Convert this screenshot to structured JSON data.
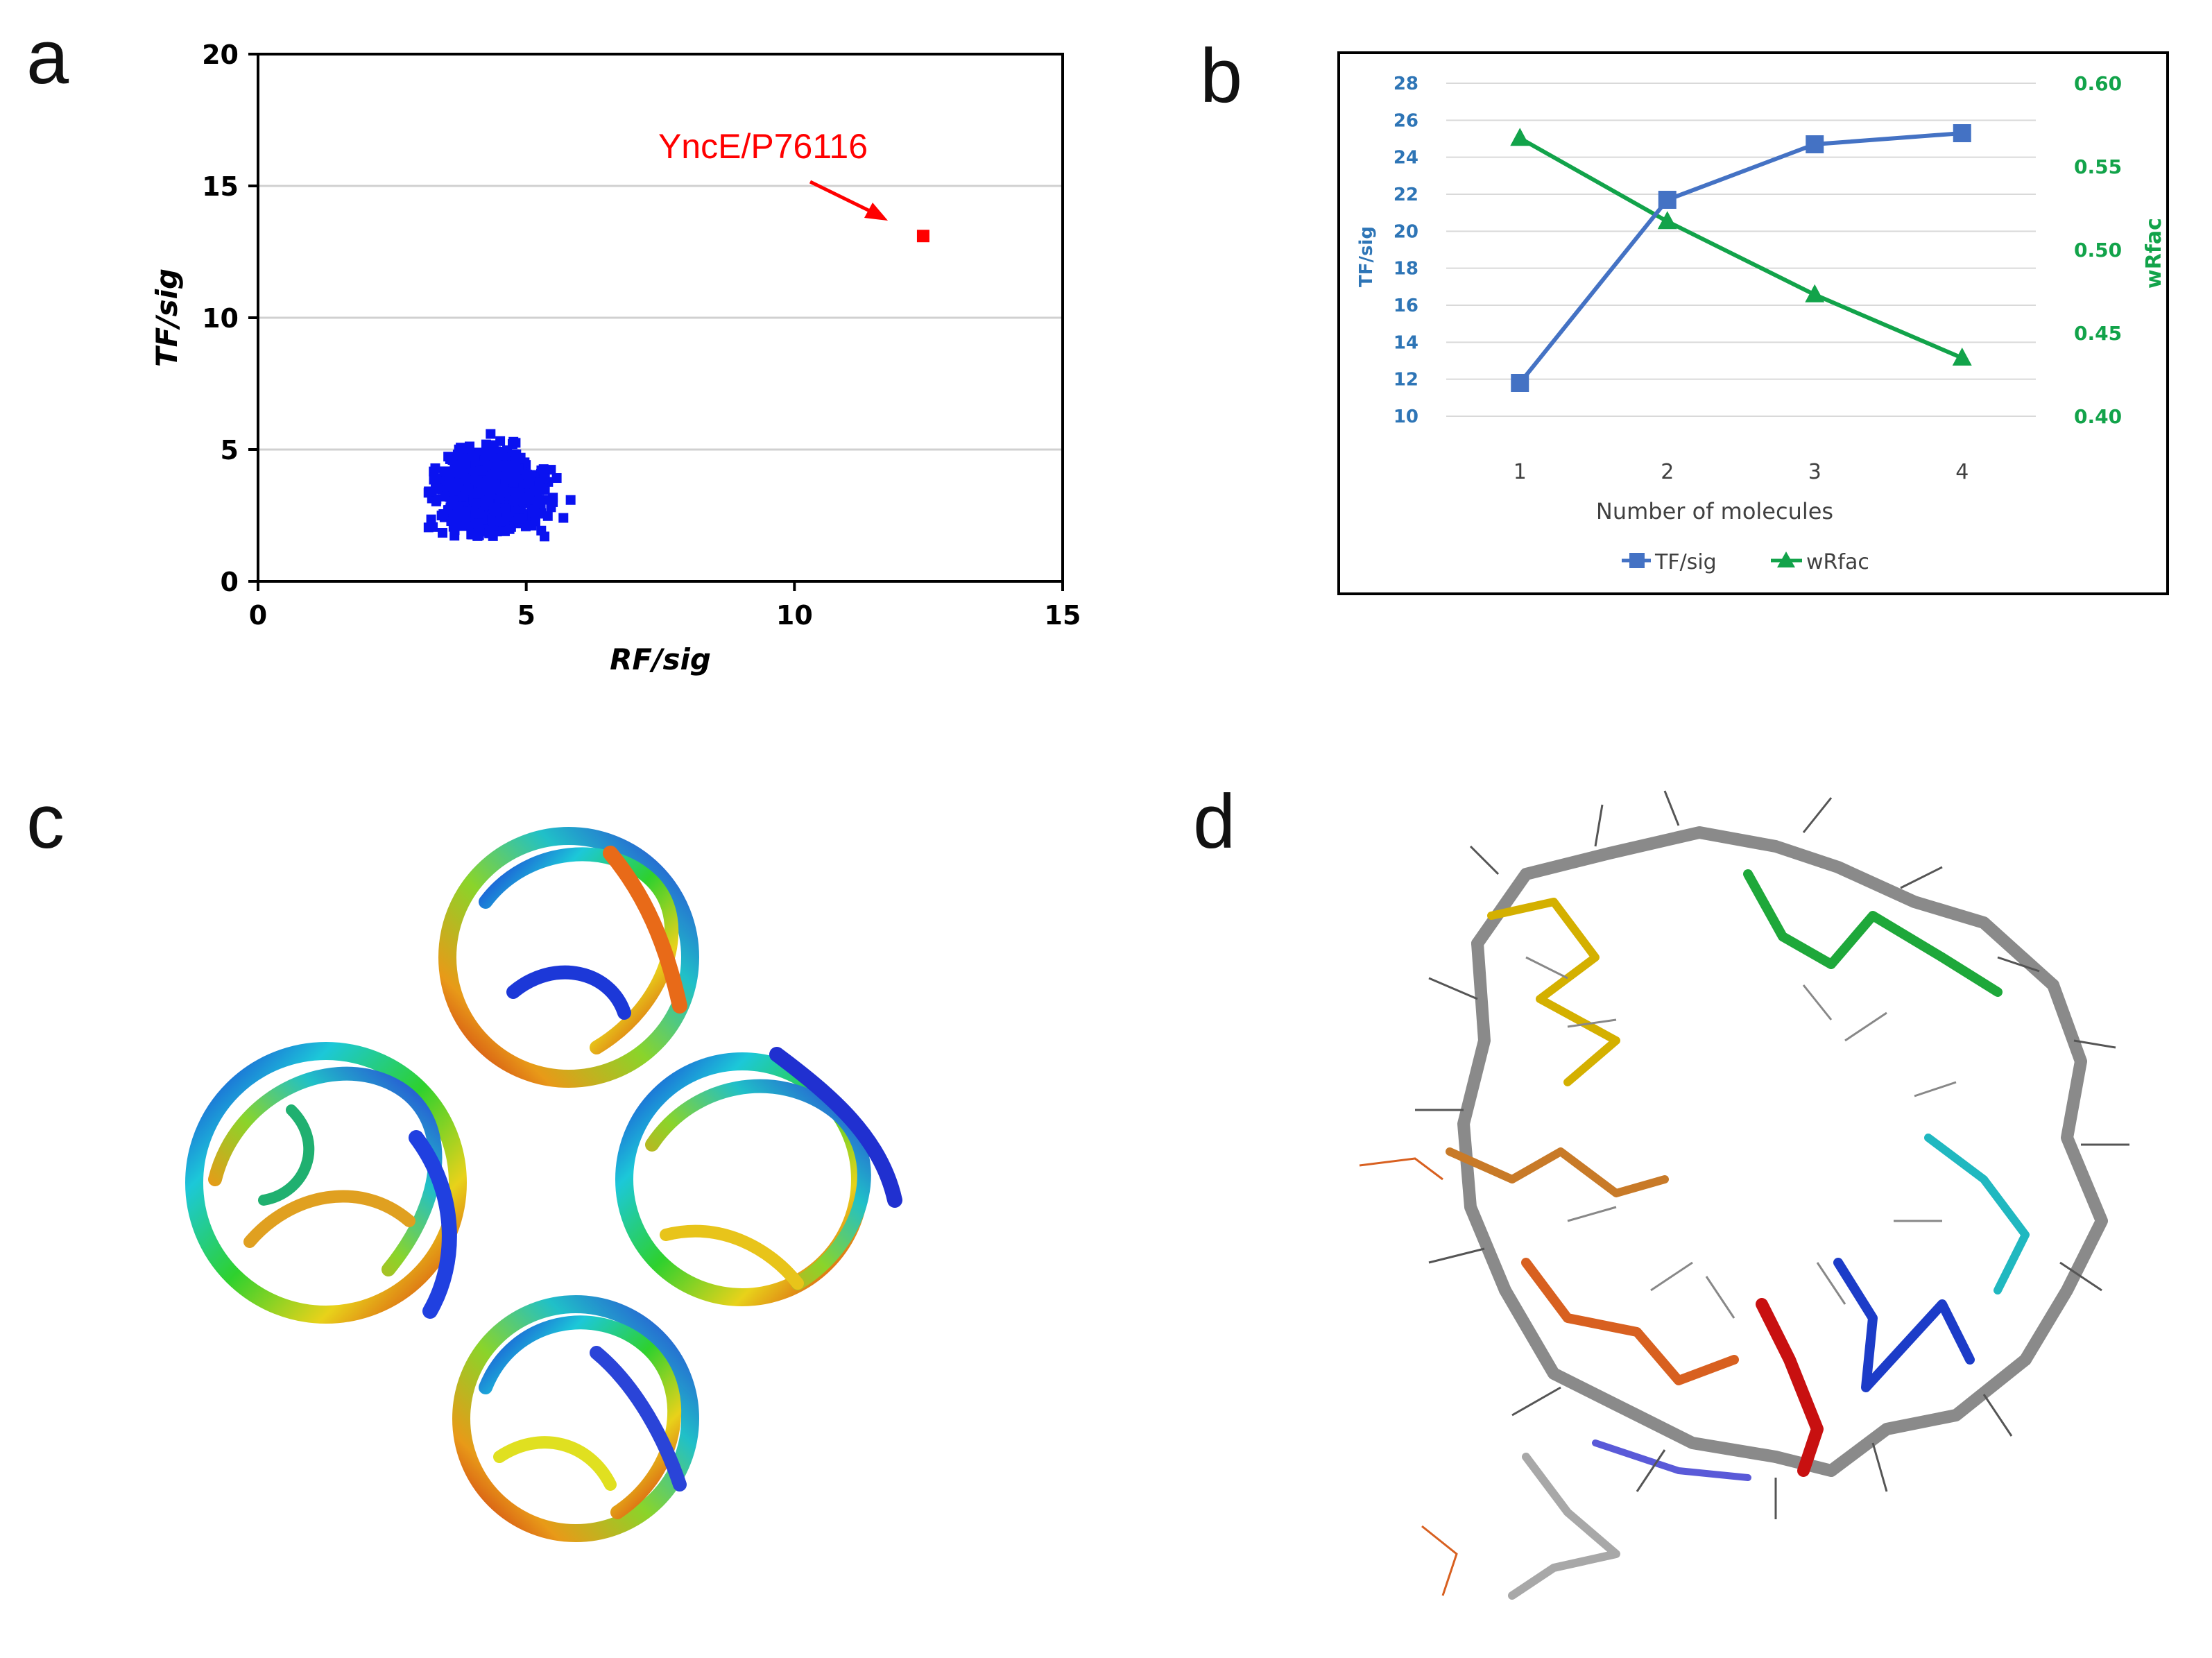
{
  "panels": {
    "a": {
      "letter": "a"
    },
    "b": {
      "letter": "b"
    },
    "c": {
      "letter": "c"
    },
    "d": {
      "letter": "d"
    }
  },
  "colors": {
    "scatter_cluster": "#0a12f0",
    "scatter_outlier": "#ff0000",
    "annotation": "#ff0000",
    "series_tf": "#4472c4",
    "series_wrfac": "#12a34a",
    "axis_left_text": "#2e75b6",
    "axis_right_text": "#12a34a"
  },
  "chart_data": [
    {
      "type": "scatter",
      "panel": "a",
      "xlabel": "RF/sig",
      "ylabel": "TF/sig",
      "xlim": [
        0,
        15
      ],
      "ylim": [
        0,
        20
      ],
      "xticks": [
        "0",
        "5",
        "10",
        "15"
      ],
      "yticks": [
        "0",
        "5",
        "10",
        "15",
        "20"
      ],
      "grid": "horizontal",
      "annotation": {
        "text": "YncE/P76116",
        "arrow_to": [
          12.2,
          13.5
        ]
      },
      "outlier": {
        "x": 12.4,
        "y": 13.1
      },
      "cluster": {
        "x_range": [
          3.1,
          5.9
        ],
        "y_range": [
          1.7,
          6.1
        ],
        "center": [
          4.3,
          3.4
        ]
      }
    },
    {
      "type": "line",
      "panel": "b",
      "xlabel": "Number of molecules",
      "ylabel_left": "TF/sig",
      "ylabel_right": "wRfac",
      "categories": [
        "1",
        "2",
        "3",
        "4"
      ],
      "ylim_left": [
        10,
        28
      ],
      "ylim_right": [
        0.4,
        0.6
      ],
      "yticks_left": [
        "10",
        "12",
        "14",
        "16",
        "18",
        "20",
        "22",
        "24",
        "26",
        "28"
      ],
      "yticks_right": [
        "0.40",
        "0.45",
        "0.50",
        "0.55",
        "0.60"
      ],
      "grid": "horizontal",
      "legend_position": "bottom",
      "series": [
        {
          "name": "TF/sig",
          "axis": "left",
          "marker": "square",
          "values": [
            11.8,
            21.7,
            24.7,
            25.3
          ]
        },
        {
          "name": "wRfac",
          "axis": "right",
          "marker": "triangle",
          "values": [
            0.567,
            0.517,
            0.473,
            0.435
          ]
        }
      ]
    }
  ]
}
